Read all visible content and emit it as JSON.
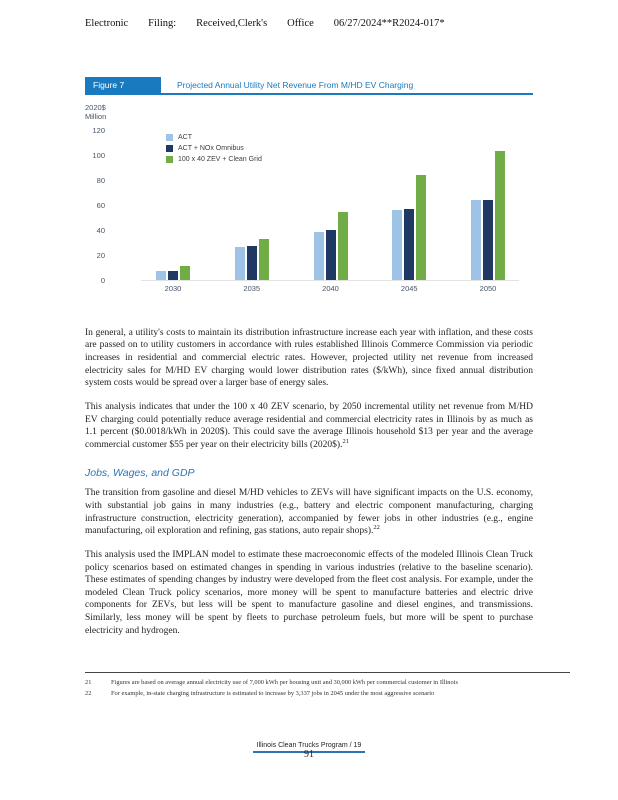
{
  "header": {
    "items": [
      "Electronic",
      "Filing:",
      "Received,Clerk's",
      "Office",
      "06/27/2024**R2024-017*"
    ]
  },
  "figure": {
    "label": "Figure 7",
    "title": "Projected Annual Utility Net Revenue From M/HD EV Charging"
  },
  "chart_data": {
    "type": "bar",
    "title": "Projected Annual Utility Net Revenue From M/HD EV Charging",
    "ylabel": "2020$ Million",
    "categories": [
      "2030",
      "2035",
      "2040",
      "2045",
      "2050"
    ],
    "series": [
      {
        "name": "ACT",
        "color": "#9dc3e6",
        "values": [
          7,
          26,
          38,
          56,
          64
        ]
      },
      {
        "name": "ACT + NOx Omnibus",
        "color": "#1f3864",
        "values": [
          7,
          27,
          40,
          57,
          64
        ]
      },
      {
        "name": "100 x 40 ZEV + Clean Grid",
        "color": "#70ad47",
        "values": [
          11,
          33,
          54,
          84,
          103
        ]
      }
    ],
    "ylim": [
      0,
      120
    ],
    "yticks": [
      0,
      20,
      40,
      60,
      80,
      100,
      120
    ],
    "legend_position": "top-left",
    "grid": false
  },
  "body": {
    "para1": "In general, a utility's costs to maintain its distribution infrastructure increase each year with inflation, and these costs are passed on to utility customers in accordance with rules established Illinois Commerce Commission via periodic increases in residential and commercial electric rates. However, projected utility net revenue from increased electricity sales for M/HD EV charging would lower distribution rates ($/kWh), since fixed annual distribution system costs would be spread over a larger base of energy sales.",
    "para2": "This analysis indicates that under the 100 x 40 ZEV scenario, by 2050 incremental utility net revenue from M/HD EV charging could potentially reduce average residential and commercial electricity rates in Illinois by as much as 1.1 percent ($0.0018/kWh in 2020$). This could save the average Illinois household $13 per year and the average commercial customer $55 per year on their electricity bills (2020$).",
    "para2_ref": "21",
    "heading": "Jobs, Wages, and GDP",
    "para3": "The transition from gasoline and diesel M/HD vehicles to ZEVs will have significant impacts on the U.S. economy, with substantial job gains in many industries (e.g., battery and electric component manufacturing, charging infrastructure construction, electricity generation), accompanied by fewer jobs in other industries (e.g., engine manufacturing, oil exploration and refining, gas stations, auto repair shops).",
    "para3_ref": "22",
    "para4": "This analysis used the IMPLAN model to estimate these macroeconomic effects of the modeled Illinois Clean Truck policy scenarios based on estimated changes in spending in various industries (relative to the baseline scenario). These estimates of spending changes by industry were developed from the fleet cost analysis. For example, under the modeled Clean Truck policy scenarios, more money will be spent to manufacture batteries and electric drive components for ZEVs, but less will be spent to manufacture gasoline and diesel engines, and transmissions. Similarly, less money will be spent by fleets to purchase petroleum fuels, but more will be spent to purchase electricity and hydrogen."
  },
  "footnotes": [
    {
      "num": "21",
      "text": "Figures are based on average annual electricity use of 7,000 kWh per housing unit and 30,000 kWh per commercial customer in Illinois"
    },
    {
      "num": "22",
      "text": "For example, in-state charging infrastructure is estimated to increase by 3,337 jobs in 2045 under the most aggressive scenario"
    }
  ],
  "footer": {
    "program": "Illinois Clean Trucks Program / 19",
    "page_number": "91"
  }
}
